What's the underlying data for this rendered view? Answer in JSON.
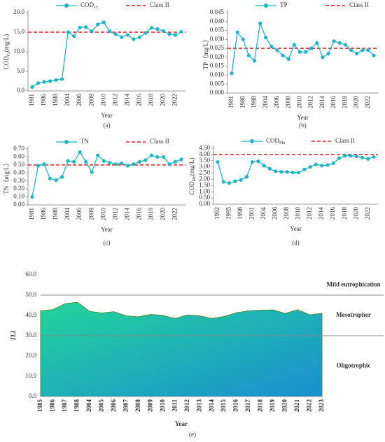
{
  "chart_data": [
    {
      "type": "line",
      "caption": "(a)",
      "xlabel": "Year",
      "ylabel": "COD",
      "ylabel_sub": "Cr",
      "ylabel_unit": "(mg/L)",
      "categories": [
        "1981",
        null,
        "1986",
        null,
        "1988",
        null,
        "2004",
        null,
        "2006",
        null,
        "2008",
        null,
        "2010",
        null,
        "2012",
        null,
        "2014",
        null,
        "2016",
        null,
        "2018",
        null,
        "2020",
        null,
        "2022",
        null
      ],
      "series": [
        {
          "name": "COD",
          "name_sub": "Cr",
          "color": "#1fb5c5",
          "values": [
            1.0,
            2.0,
            2.3,
            2.5,
            2.8,
            3.0,
            15.0,
            14.0,
            16.2,
            16.3,
            15.2,
            17.0,
            17.5,
            15.2,
            14.5,
            13.7,
            14.3,
            13.2,
            13.7,
            14.8,
            16.1,
            15.8,
            15.3,
            14.5,
            14.3,
            15.1
          ]
        }
      ],
      "reference": {
        "name": "Class II",
        "value": 15,
        "color": "#e02020"
      },
      "ylim": [
        0,
        20
      ],
      "yticks": [
        {
          "value": 0,
          "label": "0.0"
        },
        {
          "value": 5,
          "label": "5.0"
        },
        {
          "value": 10,
          "label": "10.0"
        },
        {
          "value": 15,
          "label": "15.0"
        },
        {
          "value": 20,
          "label": "20.0"
        }
      ]
    },
    {
      "type": "line",
      "caption": "(b)",
      "xlabel": "Year",
      "ylabel": "TP（mg/L）",
      "categories": [
        "1981",
        null,
        "1986",
        null,
        "1988",
        null,
        "2004",
        null,
        "2006",
        null,
        "2008",
        null,
        "2010",
        null,
        "2012",
        null,
        "2014",
        null,
        "2016",
        null,
        "2018",
        null,
        "2020",
        null,
        "2022",
        null
      ],
      "series": [
        {
          "name": "TP",
          "color": "#1fb5c5",
          "values": [
            0.011,
            0.034,
            0.03,
            0.021,
            0.018,
            0.039,
            0.031,
            0.026,
            0.024,
            0.021,
            0.019,
            0.027,
            0.023,
            0.023,
            0.025,
            0.028,
            0.02,
            0.022,
            0.029,
            0.028,
            0.027,
            0.024,
            0.022,
            0.024,
            0.024,
            0.021
          ]
        }
      ],
      "reference": {
        "name": "Class II",
        "value": 0.025,
        "color": "#e02020"
      },
      "ylim": [
        0,
        0.045
      ],
      "yticks": [
        {
          "value": 0,
          "label": "0.000"
        },
        {
          "value": 0.005,
          "label": "0.005"
        },
        {
          "value": 0.01,
          "label": "0.010"
        },
        {
          "value": 0.015,
          "label": "0.015"
        },
        {
          "value": 0.02,
          "label": "0.020"
        },
        {
          "value": 0.025,
          "label": "0.025"
        },
        {
          "value": 0.03,
          "label": "0.030"
        },
        {
          "value": 0.035,
          "label": "0.035"
        },
        {
          "value": 0.04,
          "label": "0.040"
        },
        {
          "value": 0.045,
          "label": "0.045"
        }
      ]
    },
    {
      "type": "line",
      "caption": "(c)",
      "xlabel": "Year",
      "ylabel": "TN（mg/L）",
      "categories": [
        "1981",
        null,
        "1986",
        null,
        "1988",
        null,
        "2004",
        null,
        "2006",
        null,
        "2008",
        null,
        "2010",
        null,
        "2012",
        null,
        "2014",
        null,
        "2016",
        null,
        "2018",
        null,
        "2020",
        null,
        "2022",
        null
      ],
      "series": [
        {
          "name": "TN",
          "color": "#1fb5c5",
          "values": [
            0.1,
            0.49,
            0.51,
            0.33,
            0.31,
            0.35,
            0.55,
            0.54,
            0.66,
            0.54,
            0.41,
            0.62,
            0.55,
            0.53,
            0.51,
            0.52,
            0.49,
            0.51,
            0.54,
            0.56,
            0.62,
            0.6,
            0.6,
            0.51,
            0.54,
            0.57
          ]
        }
      ],
      "reference": {
        "name": "Class II",
        "value": 0.5,
        "color": "#e02020"
      },
      "ylim": [
        0,
        0.7
      ],
      "yticks": [
        {
          "value": 0,
          "label": "0.00"
        },
        {
          "value": 0.1,
          "label": "0.10"
        },
        {
          "value": 0.2,
          "label": "0.20"
        },
        {
          "value": 0.3,
          "label": "0.30"
        },
        {
          "value": 0.4,
          "label": "0.40"
        },
        {
          "value": 0.5,
          "label": "0.50"
        },
        {
          "value": 0.6,
          "label": "0.60"
        },
        {
          "value": 0.7,
          "label": "0.70"
        }
      ]
    },
    {
      "type": "line",
      "caption": "(d)",
      "xlabel": "Year",
      "ylabel": "COD",
      "ylabel_sub": "Mn",
      "ylabel_unit": "(mg/L)",
      "categories": [
        "1992",
        null,
        "1995",
        null,
        "1998",
        null,
        "2001",
        null,
        "2004",
        null,
        "2006",
        null,
        "2008",
        null,
        "2010",
        null,
        "2012",
        null,
        "2014",
        null,
        "2016",
        null,
        "2018",
        null,
        "2020",
        null,
        "2022",
        null
      ],
      "series": [
        {
          "name": "COD",
          "name_sub": "Mn",
          "color": "#1fb5c5",
          "values": [
            3.4,
            1.8,
            1.7,
            1.85,
            1.95,
            2.2,
            3.4,
            3.45,
            3.1,
            2.85,
            2.65,
            2.6,
            2.6,
            2.55,
            2.55,
            2.8,
            3.0,
            3.2,
            3.1,
            3.15,
            3.3,
            3.7,
            3.9,
            3.9,
            3.85,
            3.75,
            3.65,
            3.8
          ]
        }
      ],
      "reference": {
        "name": "Class II",
        "value": 4.0,
        "color": "#e02020"
      },
      "ylim": [
        0,
        4.5
      ],
      "yticks": [
        {
          "value": 0,
          "label": "0.00"
        },
        {
          "value": 0.5,
          "label": "0.50"
        },
        {
          "value": 1,
          "label": "1.00"
        },
        {
          "value": 1.5,
          "label": "1.50"
        },
        {
          "value": 2,
          "label": "2.00"
        },
        {
          "value": 2.5,
          "label": "2.50"
        },
        {
          "value": 3,
          "label": "3.00"
        },
        {
          "value": 3.5,
          "label": "3.50"
        },
        {
          "value": 4,
          "label": "4.00"
        },
        {
          "value": 4.5,
          "label": "4.50"
        }
      ]
    },
    {
      "type": "area",
      "caption": "(e)",
      "xlabel": "Year",
      "ylabel": "TLI",
      "categories": [
        "1985",
        "1986",
        "1987",
        "1988",
        "2004",
        "2005",
        "2006",
        "2007",
        "2008",
        "2009",
        "2010",
        "2011",
        "2012",
        "2013",
        "2014",
        "2015",
        "2016",
        "2017",
        "2018",
        "2019",
        "2020",
        "2021",
        "2022",
        "2023"
      ],
      "values": [
        42.3,
        42.8,
        45.8,
        46.5,
        42.0,
        41.2,
        41.8,
        39.8,
        39.3,
        40.5,
        40.0,
        38.5,
        40.2,
        39.8,
        38.5,
        39.5,
        41.3,
        42.3,
        42.6,
        42.7,
        41.0,
        42.8,
        40.3,
        41.0
      ],
      "gradient": [
        "#22d49a",
        "#1a8fd0"
      ],
      "edge_color": "#5a8a3a",
      "thresholds": [
        50,
        30
      ],
      "zone_labels": [
        "Mild eutrophication",
        "Mesotropher",
        "Oligotrophic"
      ],
      "ylim": [
        0,
        60
      ],
      "yticks": [
        {
          "value": 0,
          "label": "0.0"
        },
        {
          "value": 10,
          "label": "10.0"
        },
        {
          "value": 20,
          "label": "20.0"
        },
        {
          "value": 30,
          "label": "30.0"
        },
        {
          "value": 40,
          "label": "40.0"
        },
        {
          "value": 50,
          "label": "50.0"
        },
        {
          "value": 60,
          "label": "60.0"
        }
      ]
    }
  ]
}
